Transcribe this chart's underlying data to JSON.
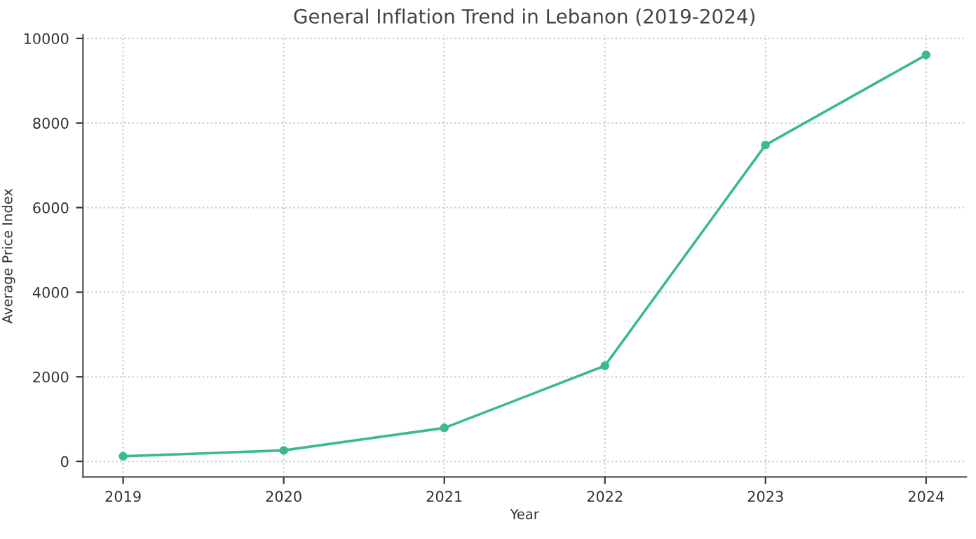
{
  "chart_data": {
    "type": "line",
    "title": "General Inflation Trend in Lebanon (2019-2024)",
    "xlabel": "Year",
    "ylabel": "Average Price Index",
    "x": [
      2019,
      2020,
      2021,
      2022,
      2023,
      2024
    ],
    "series": [
      {
        "color": "#3cb98e",
        "values": [
          120,
          260,
          790,
          2260,
          7480,
          9610
        ]
      }
    ],
    "xlim": [
      2018.75,
      2024.25
    ],
    "xticks": [
      2019,
      2020,
      2021,
      2022,
      2023,
      2024
    ],
    "ylim": [
      -370,
      10080
    ],
    "yticks": [
      0,
      2000,
      4000,
      6000,
      8000,
      10000
    ],
    "grid": true,
    "marker": "circle",
    "line_style": "solid"
  }
}
